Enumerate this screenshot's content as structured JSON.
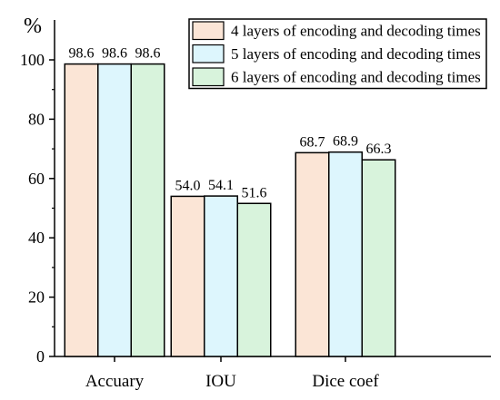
{
  "chart_data": {
    "type": "bar",
    "title": "",
    "xlabel": "",
    "ylabel": "%",
    "ylim": [
      0,
      110
    ],
    "yticks": [
      "0",
      "20",
      "40",
      "60",
      "80",
      "100"
    ],
    "categories": [
      "Accuary",
      "IOU",
      "Dice coef"
    ],
    "series": [
      {
        "name": "4 layers of encoding and decoding times",
        "color": "#fbe5d6",
        "values": [
          98.6,
          54.0,
          68.7
        ],
        "labels": [
          "98.6",
          "54.0",
          "68.7"
        ]
      },
      {
        "name": "5 layers of encoding and decoding times",
        "color": "#ddf6fd",
        "values": [
          98.6,
          54.1,
          68.9
        ],
        "labels": [
          "98.6",
          "54.1",
          "68.9"
        ]
      },
      {
        "name": "6 layers of encoding and decoding times",
        "color": "#d8f3dc",
        "values": [
          98.6,
          51.6,
          66.3
        ],
        "labels": [
          "98.6",
          "51.6",
          "66.3"
        ]
      }
    ],
    "grid": false,
    "legend_position": "top-right"
  }
}
